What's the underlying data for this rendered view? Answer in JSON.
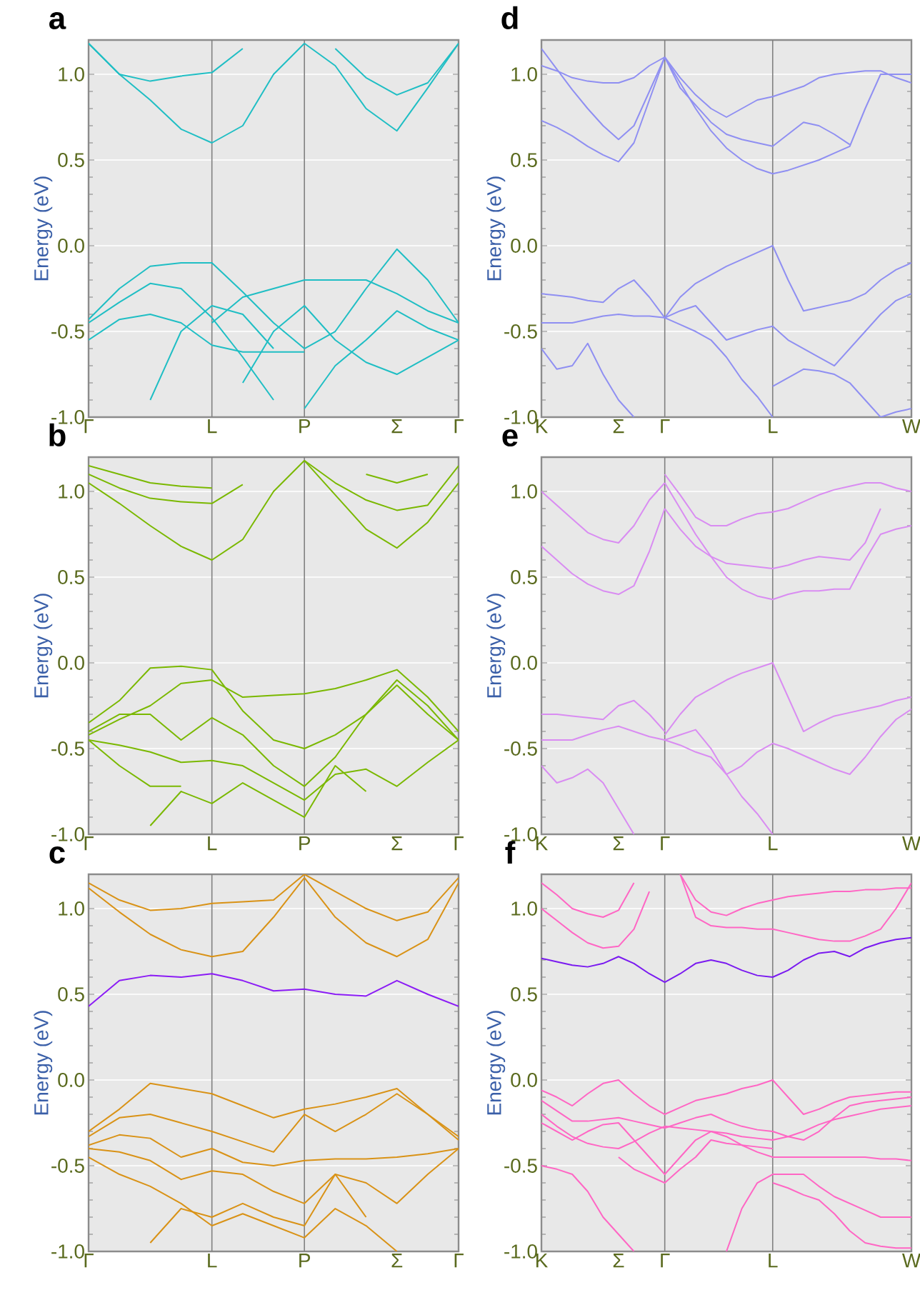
{
  "chart_data": [
    {
      "type": "line",
      "title": "a",
      "ylabel": "Energy (eV)",
      "ylim": [
        -1,
        1.2
      ],
      "grid": "y",
      "categories": [
        "Γ",
        null,
        null,
        null,
        "L",
        null,
        null,
        "P",
        null,
        null,
        "Σ",
        null,
        "Γ"
      ],
      "yticks": [
        {
          "value": -1,
          "label": "-1.0"
        },
        {
          "value": -0.5,
          "label": "-0.5"
        },
        {
          "value": 0,
          "label": "0.0"
        },
        {
          "value": 0.5,
          "label": "0.5"
        },
        {
          "value": 1,
          "label": "1.0"
        }
      ],
      "ref_lines": [
        {
          "axis": "x",
          "value": "L",
          "color": "#808080"
        },
        {
          "axis": "x",
          "value": "P",
          "color": "#808080"
        }
      ],
      "series": [
        {
          "color": "#1fbec4",
          "values": [
            1.18,
            1.0,
            0.85,
            0.68,
            0.6,
            0.7,
            1.0,
            1.18,
            null,
            null,
            null,
            null,
            null
          ]
        },
        {
          "color": "#1fbec4",
          "values": [
            null,
            null,
            null,
            null,
            null,
            null,
            null,
            1.18,
            1.05,
            0.8,
            0.67,
            0.92,
            1.18
          ]
        },
        {
          "color": "#1fbec4",
          "values": [
            1.18,
            1.0,
            0.96,
            0.99,
            1.01,
            1.15,
            null,
            null,
            null,
            null,
            null,
            null,
            null
          ]
        },
        {
          "color": "#1fbec4",
          "values": [
            null,
            null,
            null,
            null,
            null,
            null,
            null,
            null,
            1.15,
            0.98,
            0.88,
            0.95,
            1.18
          ]
        },
        {
          "color": "#1fbec4",
          "values": [
            -0.43,
            -0.25,
            -0.12,
            -0.1,
            -0.1,
            -0.27,
            -0.45,
            -0.6,
            null,
            null,
            null,
            null,
            null
          ]
        },
        {
          "color": "#1fbec4",
          "values": [
            null,
            null,
            null,
            null,
            -0.45,
            -0.3,
            -0.25,
            -0.2,
            -0.2,
            -0.2,
            -0.28,
            -0.38,
            -0.45
          ]
        },
        {
          "color": "#1fbec4",
          "values": [
            null,
            null,
            null,
            null,
            null,
            null,
            null,
            -0.6,
            -0.5,
            -0.25,
            -0.02,
            -0.2,
            -0.45
          ]
        },
        {
          "color": "#1fbec4",
          "values": [
            -0.45,
            -0.33,
            -0.22,
            -0.25,
            -0.42,
            -0.65,
            -0.9,
            null,
            null,
            null,
            null,
            null,
            null
          ]
        },
        {
          "color": "#1fbec4",
          "values": [
            -0.55,
            -0.43,
            -0.4,
            -0.45,
            -0.58,
            -0.62,
            -0.62,
            -0.62,
            null,
            null,
            null,
            null,
            null
          ]
        },
        {
          "color": "#1fbec4",
          "values": [
            null,
            null,
            -0.9,
            -0.5,
            -0.35,
            -0.4,
            -0.6,
            null,
            null,
            null,
            null,
            null,
            null
          ]
        },
        {
          "color": "#1fbec4",
          "values": [
            null,
            null,
            null,
            null,
            null,
            null,
            null,
            -0.95,
            -0.7,
            -0.55,
            -0.38,
            -0.48,
            -0.55
          ]
        },
        {
          "color": "#1fbec4",
          "values": [
            null,
            null,
            null,
            null,
            null,
            -0.8,
            -0.5,
            -0.35,
            -0.55,
            -0.68,
            -0.75,
            -0.65,
            -0.55
          ]
        }
      ]
    },
    {
      "type": "line",
      "title": "d",
      "ylabel": "Energy (eV)",
      "ylim": [
        -1,
        1.2
      ],
      "grid": "y",
      "categories": [
        "K",
        null,
        null,
        null,
        null,
        "Σ",
        null,
        null,
        "Γ",
        null,
        null,
        null,
        null,
        null,
        null,
        "L",
        null,
        null,
        null,
        null,
        null,
        null,
        null,
        null,
        "W"
      ],
      "yticks": [
        {
          "value": -1,
          "label": "-1.0"
        },
        {
          "value": -0.5,
          "label": "-0.5"
        },
        {
          "value": 0,
          "label": "0.0"
        },
        {
          "value": 0.5,
          "label": "0.5"
        },
        {
          "value": 1,
          "label": "1.0"
        }
      ],
      "ref_lines": [
        {
          "axis": "x",
          "value": "Γ",
          "color": "#808080"
        },
        {
          "axis": "x",
          "value": "L",
          "color": "#808080"
        }
      ],
      "series": [
        {
          "color": "#8f8ff2",
          "values": [
            0.73,
            0.69,
            0.64,
            0.58,
            0.53,
            0.49,
            0.6,
            0.85,
            1.1,
            null,
            null,
            null,
            null,
            null,
            null,
            null,
            null,
            null,
            null,
            null,
            null,
            null,
            null,
            null,
            null
          ]
        },
        {
          "color": "#8f8ff2",
          "values": [
            1.15,
            1.03,
            0.91,
            0.8,
            0.7,
            0.62,
            0.7,
            0.9,
            1.1,
            null,
            null,
            null,
            null,
            null,
            null,
            null,
            null,
            null,
            null,
            null,
            null,
            null,
            null,
            null,
            null
          ]
        },
        {
          "color": "#8f8ff2",
          "values": [
            1.05,
            1.02,
            0.98,
            0.96,
            0.95,
            0.95,
            0.98,
            1.05,
            1.1,
            null,
            null,
            null,
            null,
            null,
            null,
            null,
            null,
            null,
            null,
            null,
            null,
            null,
            null,
            null,
            null
          ]
        },
        {
          "color": "#8f8ff2",
          "values": [
            null,
            null,
            null,
            null,
            null,
            null,
            null,
            null,
            1.1,
            0.95,
            0.8,
            0.67,
            0.57,
            0.5,
            0.45,
            0.42,
            0.44,
            0.47,
            0.5,
            0.54,
            0.58,
            0.8,
            1.0,
            1.0,
            1.0
          ]
        },
        {
          "color": "#8f8ff2",
          "values": [
            null,
            null,
            null,
            null,
            null,
            null,
            null,
            null,
            1.1,
            0.92,
            0.82,
            0.72,
            0.65,
            0.62,
            0.6,
            0.58,
            0.65,
            0.72,
            0.7,
            0.65,
            0.59,
            null,
            null,
            null,
            null
          ]
        },
        {
          "color": "#8f8ff2",
          "values": [
            null,
            null,
            null,
            null,
            null,
            null,
            null,
            null,
            1.1,
            0.98,
            0.88,
            0.8,
            0.75,
            0.8,
            0.85,
            0.87,
            0.9,
            0.93,
            0.98,
            1.0,
            1.01,
            1.02,
            1.02,
            0.98,
            0.95
          ]
        },
        {
          "color": "#8f8ff2",
          "values": [
            null,
            null,
            null,
            null,
            null,
            null,
            null,
            null,
            -0.42,
            -0.3,
            -0.22,
            -0.17,
            -0.12,
            -0.08,
            -0.04,
            0.0,
            -0.2,
            -0.38,
            -0.36,
            -0.34,
            -0.32,
            -0.28,
            -0.2,
            -0.14,
            -0.1
          ]
        },
        {
          "color": "#8f8ff2",
          "values": [
            -0.28,
            -0.29,
            -0.3,
            -0.32,
            -0.33,
            -0.25,
            -0.2,
            -0.3,
            -0.42,
            null,
            null,
            null,
            null,
            null,
            null,
            null,
            null,
            null,
            null,
            null,
            null,
            null,
            null,
            null,
            null
          ]
        },
        {
          "color": "#8f8ff2",
          "values": [
            -0.45,
            -0.45,
            -0.45,
            -0.43,
            -0.41,
            -0.4,
            -0.41,
            -0.41,
            -0.42,
            -0.46,
            -0.5,
            -0.55,
            -0.65,
            -0.78,
            -0.88,
            -1.0,
            null,
            null,
            null,
            null,
            null,
            null,
            null,
            null,
            null
          ]
        },
        {
          "color": "#8f8ff2",
          "values": [
            null,
            null,
            null,
            null,
            null,
            null,
            null,
            null,
            -0.42,
            -0.38,
            -0.35,
            -0.45,
            -0.55,
            -0.52,
            -0.49,
            -0.47,
            -0.55,
            -0.6,
            -0.65,
            -0.7,
            -0.6,
            -0.5,
            -0.4,
            -0.32,
            -0.28
          ]
        },
        {
          "color": "#8f8ff2",
          "values": [
            -0.6,
            -0.72,
            -0.7,
            -0.57,
            -0.75,
            -0.9,
            -1.0,
            null,
            null,
            null,
            null,
            null,
            null,
            null,
            null,
            null,
            null,
            null,
            null,
            null,
            null,
            null,
            null,
            null,
            null
          ]
        },
        {
          "color": "#8f8ff2",
          "values": [
            null,
            null,
            null,
            null,
            null,
            null,
            null,
            null,
            null,
            null,
            null,
            null,
            null,
            null,
            null,
            -0.82,
            -0.77,
            -0.72,
            -0.73,
            -0.75,
            -0.8,
            -0.9,
            -1.0,
            -0.97,
            -0.95
          ]
        }
      ]
    },
    {
      "type": "line",
      "title": "b",
      "ylabel": "Energy (eV)",
      "ylim": [
        -1,
        1.2
      ],
      "grid": "y",
      "categories": [
        "Γ",
        null,
        null,
        null,
        "L",
        null,
        null,
        "P",
        null,
        null,
        "Σ",
        null,
        "Γ"
      ],
      "yticks": [
        {
          "value": -1,
          "label": "-1.0"
        },
        {
          "value": -0.5,
          "label": "-0.5"
        },
        {
          "value": 0,
          "label": "0.0"
        },
        {
          "value": 0.5,
          "label": "0.5"
        },
        {
          "value": 1,
          "label": "1.0"
        }
      ],
      "ref_lines": [
        {
          "axis": "x",
          "value": "L",
          "color": "#808080"
        },
        {
          "axis": "x",
          "value": "P",
          "color": "#808080"
        }
      ],
      "series": [
        {
          "color": "#7ab800",
          "values": [
            1.05,
            0.93,
            0.8,
            0.68,
            0.6,
            0.72,
            1.0,
            1.18,
            null,
            null,
            null,
            null,
            null
          ]
        },
        {
          "color": "#7ab800",
          "values": [
            null,
            null,
            null,
            null,
            null,
            null,
            null,
            1.18,
            0.98,
            0.78,
            0.67,
            0.82,
            1.05
          ]
        },
        {
          "color": "#7ab800",
          "values": [
            1.1,
            1.02,
            0.96,
            0.94,
            0.93,
            1.04,
            null,
            null,
            null,
            null,
            null,
            null,
            null
          ]
        },
        {
          "color": "#7ab800",
          "values": [
            null,
            null,
            null,
            null,
            null,
            null,
            null,
            1.18,
            1.05,
            0.95,
            0.89,
            0.92,
            1.15
          ]
        },
        {
          "color": "#7ab800",
          "values": [
            1.15,
            1.1,
            1.05,
            1.03,
            1.02,
            null,
            null,
            null,
            null,
            null,
            null,
            null,
            null
          ]
        },
        {
          "color": "#7ab800",
          "values": [
            null,
            null,
            null,
            null,
            null,
            null,
            null,
            null,
            null,
            1.1,
            1.05,
            1.1,
            null
          ]
        },
        {
          "color": "#7ab800",
          "values": [
            -0.35,
            -0.22,
            -0.03,
            -0.02,
            -0.04,
            -0.28,
            -0.45,
            -0.5,
            -0.42,
            -0.3,
            -0.1,
            -0.25,
            -0.45
          ]
        },
        {
          "color": "#7ab800",
          "values": [
            -0.42,
            -0.33,
            -0.25,
            -0.12,
            -0.1,
            -0.2,
            -0.19,
            -0.18,
            -0.15,
            -0.1,
            -0.04,
            -0.2,
            -0.4
          ]
        },
        {
          "color": "#7ab800",
          "values": [
            -0.4,
            -0.3,
            -0.3,
            -0.45,
            -0.32,
            -0.42,
            -0.6,
            -0.72,
            -0.55,
            -0.3,
            -0.13,
            -0.3,
            -0.45
          ]
        },
        {
          "color": "#7ab800",
          "values": [
            -0.45,
            -0.48,
            -0.52,
            -0.58,
            -0.57,
            -0.6,
            -0.7,
            -0.8,
            -0.65,
            -0.62,
            -0.72,
            -0.58,
            -0.45
          ]
        },
        {
          "color": "#7ab800",
          "values": [
            null,
            null,
            -0.95,
            -0.75,
            -0.82,
            -0.7,
            -0.8,
            -0.9,
            -0.6,
            -0.75,
            null,
            null,
            null
          ]
        },
        {
          "color": "#7ab800",
          "values": [
            -0.45,
            -0.6,
            -0.72,
            -0.72,
            null,
            null,
            null,
            null,
            null,
            null,
            null,
            null,
            null
          ]
        }
      ]
    },
    {
      "type": "line",
      "title": "e",
      "ylabel": "Energy (eV)",
      "ylim": [
        -1,
        1.2
      ],
      "grid": "y",
      "categories": [
        "K",
        null,
        null,
        null,
        null,
        "Σ",
        null,
        null,
        "Γ",
        null,
        null,
        null,
        null,
        null,
        null,
        "L",
        null,
        null,
        null,
        null,
        null,
        null,
        null,
        null,
        "W"
      ],
      "yticks": [
        {
          "value": -1,
          "label": "-1.0"
        },
        {
          "value": -0.5,
          "label": "-0.5"
        },
        {
          "value": 0,
          "label": "0.0"
        },
        {
          "value": 0.5,
          "label": "0.5"
        },
        {
          "value": 1,
          "label": "1.0"
        }
      ],
      "ref_lines": [
        {
          "axis": "x",
          "value": "Γ",
          "color": "#808080"
        },
        {
          "axis": "x",
          "value": "L",
          "color": "#808080"
        }
      ],
      "series": [
        {
          "color": "#d98cf2",
          "values": [
            0.68,
            0.6,
            0.52,
            0.46,
            0.42,
            0.4,
            0.45,
            0.65,
            0.9,
            null,
            null,
            null,
            null,
            null,
            null,
            null,
            null,
            null,
            null,
            null,
            null,
            null,
            null,
            null,
            null
          ]
        },
        {
          "color": "#d98cf2",
          "values": [
            1.0,
            0.92,
            0.84,
            0.76,
            0.72,
            0.7,
            0.8,
            0.95,
            1.05,
            null,
            null,
            null,
            null,
            null,
            null,
            null,
            null,
            null,
            null,
            null,
            null,
            null,
            null,
            null,
            null
          ]
        },
        {
          "color": "#d98cf2",
          "values": [
            null,
            null,
            null,
            null,
            null,
            null,
            null,
            null,
            1.05,
            0.9,
            0.75,
            0.62,
            0.5,
            0.43,
            0.39,
            0.37,
            0.4,
            0.42,
            0.42,
            0.43,
            0.43,
            0.6,
            0.75,
            0.78,
            0.8
          ]
        },
        {
          "color": "#d98cf2",
          "values": [
            null,
            null,
            null,
            null,
            null,
            null,
            null,
            null,
            0.9,
            0.78,
            0.68,
            0.62,
            0.58,
            0.57,
            0.56,
            0.55,
            0.57,
            0.6,
            0.62,
            0.61,
            0.6,
            0.7,
            0.9,
            null,
            null
          ]
        },
        {
          "color": "#d98cf2",
          "values": [
            null,
            null,
            null,
            null,
            null,
            null,
            null,
            null,
            1.1,
            0.98,
            0.85,
            0.8,
            0.8,
            0.84,
            0.87,
            0.88,
            0.9,
            0.94,
            0.98,
            1.01,
            1.03,
            1.05,
            1.05,
            1.02,
            1.0
          ]
        },
        {
          "color": "#d98cf2",
          "values": [
            null,
            null,
            null,
            null,
            null,
            null,
            null,
            null,
            -0.42,
            -0.3,
            -0.2,
            -0.15,
            -0.1,
            -0.06,
            -0.03,
            0.0,
            -0.2,
            -0.4,
            -0.35,
            -0.31,
            -0.29,
            -0.27,
            -0.25,
            -0.22,
            -0.2
          ]
        },
        {
          "color": "#d98cf2",
          "values": [
            -0.3,
            -0.3,
            -0.31,
            -0.32,
            -0.33,
            -0.25,
            -0.22,
            -0.3,
            -0.4,
            null,
            null,
            null,
            null,
            null,
            null,
            null,
            null,
            null,
            null,
            null,
            null,
            null,
            null,
            null,
            null
          ]
        },
        {
          "color": "#d98cf2",
          "values": [
            -0.45,
            -0.45,
            -0.45,
            -0.42,
            -0.39,
            -0.37,
            -0.4,
            -0.43,
            -0.45,
            -0.48,
            -0.52,
            -0.55,
            -0.65,
            -0.78,
            -0.88,
            -1.0,
            null,
            null,
            null,
            null,
            null,
            null,
            null,
            null,
            null
          ]
        },
        {
          "color": "#d98cf2",
          "values": [
            null,
            null,
            null,
            null,
            null,
            null,
            null,
            null,
            -0.45,
            -0.42,
            -0.39,
            -0.5,
            -0.65,
            -0.6,
            -0.52,
            -0.47,
            -0.5,
            -0.54,
            -0.58,
            -0.62,
            -0.65,
            -0.55,
            -0.43,
            -0.33,
            -0.27
          ]
        },
        {
          "color": "#d98cf2",
          "values": [
            -0.6,
            -0.7,
            -0.67,
            -0.62,
            -0.7,
            -0.85,
            -1.0,
            null,
            null,
            null,
            null,
            null,
            null,
            null,
            null,
            null,
            null,
            null,
            null,
            null,
            null,
            null,
            null,
            null,
            null
          ]
        }
      ]
    },
    {
      "type": "line",
      "title": "c",
      "ylabel": "Energy (eV)",
      "ylim": [
        -1,
        1.2
      ],
      "grid": "y",
      "categories": [
        "Γ",
        null,
        null,
        null,
        "L",
        null,
        null,
        "P",
        null,
        null,
        "Σ",
        null,
        "Γ"
      ],
      "yticks": [
        {
          "value": -1,
          "label": "-1.0"
        },
        {
          "value": -0.5,
          "label": "-0.5"
        },
        {
          "value": 0,
          "label": "0.0"
        },
        {
          "value": 0.5,
          "label": "0.5"
        },
        {
          "value": 1,
          "label": "1.0"
        }
      ],
      "ref_lines": [
        {
          "axis": "x",
          "value": "L",
          "color": "#808080"
        },
        {
          "axis": "x",
          "value": "P",
          "color": "#808080"
        }
      ],
      "series": [
        {
          "color": "#d99216",
          "values": [
            1.12,
            0.98,
            0.85,
            0.76,
            0.72,
            0.75,
            0.95,
            1.18,
            null,
            null,
            null,
            null,
            null
          ]
        },
        {
          "color": "#d99216",
          "values": [
            null,
            null,
            null,
            null,
            null,
            null,
            null,
            1.18,
            0.95,
            0.8,
            0.72,
            0.82,
            1.15
          ]
        },
        {
          "color": "#d99216",
          "values": [
            1.15,
            1.05,
            0.99,
            1.0,
            1.03,
            1.04,
            1.05,
            1.2,
            null,
            null,
            null,
            null,
            null
          ]
        },
        {
          "color": "#d99216",
          "values": [
            null,
            null,
            null,
            null,
            null,
            null,
            null,
            1.2,
            1.1,
            1.0,
            0.93,
            0.98,
            1.18
          ]
        },
        {
          "color": "#d99216",
          "values": [
            -0.3,
            -0.17,
            -0.02,
            -0.05,
            -0.08,
            -0.15,
            -0.22,
            -0.17,
            -0.14,
            -0.1,
            -0.05,
            -0.2,
            -0.33
          ]
        },
        {
          "color": "#d99216",
          "values": [
            -0.33,
            -0.22,
            -0.2,
            -0.25,
            -0.3,
            -0.36,
            -0.42,
            -0.2,
            -0.3,
            -0.2,
            -0.08,
            -0.2,
            -0.35
          ]
        },
        {
          "color": "#d99216",
          "values": [
            -0.38,
            -0.32,
            -0.34,
            -0.45,
            -0.4,
            -0.48,
            -0.5,
            -0.47,
            -0.46,
            -0.46,
            -0.45,
            -0.43,
            -0.4
          ]
        },
        {
          "color": "#d99216",
          "values": [
            -0.4,
            -0.42,
            -0.47,
            -0.58,
            -0.53,
            -0.55,
            -0.65,
            -0.72,
            -0.55,
            -0.6,
            -0.72,
            -0.55,
            -0.4
          ]
        },
        {
          "color": "#d99216",
          "values": [
            null,
            null,
            -0.95,
            -0.75,
            -0.8,
            -0.72,
            -0.8,
            -0.85,
            -0.55,
            -0.8,
            null,
            null,
            null
          ]
        },
        {
          "color": "#d99216",
          "values": [
            -0.45,
            -0.55,
            -0.62,
            -0.72,
            -0.85,
            -0.78,
            -0.85,
            -0.92,
            -0.75,
            -0.85,
            -1.0,
            null,
            null
          ]
        },
        {
          "color": "#8b1cf5",
          "values": [
            0.43,
            0.58,
            0.61,
            0.6,
            0.62,
            0.58,
            0.52,
            0.53,
            0.5,
            0.49,
            0.58,
            0.5,
            0.43
          ]
        }
      ]
    },
    {
      "type": "line",
      "title": "f",
      "ylabel": "Energy (eV)",
      "ylim": [
        -1,
        1.2
      ],
      "grid": "y",
      "categories": [
        "K",
        null,
        null,
        null,
        null,
        "Σ",
        null,
        null,
        "Γ",
        null,
        null,
        null,
        null,
        null,
        null,
        "L",
        null,
        null,
        null,
        null,
        null,
        null,
        null,
        null,
        "W"
      ],
      "yticks": [
        {
          "value": -1,
          "label": "-1.0"
        },
        {
          "value": -0.5,
          "label": "-0.5"
        },
        {
          "value": 0,
          "label": "0.0"
        },
        {
          "value": 0.5,
          "label": "0.5"
        },
        {
          "value": 1,
          "label": "1.0"
        }
      ],
      "ref_lines": [
        {
          "axis": "x",
          "value": "Γ",
          "color": "#808080"
        },
        {
          "axis": "x",
          "value": "L",
          "color": "#808080"
        }
      ],
      "series": [
        {
          "color": "#ff66c4",
          "values": [
            1.0,
            0.93,
            0.86,
            0.8,
            0.77,
            0.78,
            0.88,
            1.1,
            null,
            null,
            null,
            null,
            null,
            null,
            null,
            null,
            null,
            null,
            null,
            null,
            null,
            null,
            null,
            null,
            null
          ]
        },
        {
          "color": "#ff66c4",
          "values": [
            1.15,
            1.08,
            1.0,
            0.97,
            0.95,
            0.99,
            1.15,
            null,
            null,
            null,
            null,
            null,
            null,
            null,
            null,
            null,
            null,
            null,
            null,
            null,
            null,
            null,
            null,
            null,
            null
          ]
        },
        {
          "color": "#ff66c4",
          "values": [
            null,
            null,
            null,
            null,
            null,
            null,
            null,
            null,
            null,
            1.2,
            0.95,
            0.9,
            0.89,
            0.89,
            0.88,
            0.88,
            0.86,
            0.84,
            0.82,
            0.81,
            0.81,
            0.84,
            0.88,
            1.0,
            1.15
          ]
        },
        {
          "color": "#ff66c4",
          "values": [
            null,
            null,
            null,
            null,
            null,
            null,
            null,
            null,
            null,
            1.2,
            1.05,
            0.98,
            0.96,
            1.0,
            1.03,
            1.05,
            1.07,
            1.08,
            1.09,
            1.1,
            1.1,
            1.11,
            1.11,
            1.12,
            1.12
          ]
        },
        {
          "color": "#ff66c4",
          "values": [
            -0.06,
            -0.1,
            -0.15,
            -0.08,
            -0.02,
            0.0,
            -0.08,
            -0.15,
            -0.2,
            -0.16,
            -0.12,
            -0.1,
            -0.08,
            -0.05,
            -0.03,
            0.0,
            -0.1,
            -0.2,
            -0.17,
            -0.13,
            -0.1,
            -0.09,
            -0.08,
            -0.07,
            -0.07
          ]
        },
        {
          "color": "#ff66c4",
          "values": [
            -0.12,
            -0.18,
            -0.24,
            -0.24,
            -0.23,
            -0.22,
            -0.24,
            -0.26,
            -0.28,
            -0.25,
            -0.22,
            -0.2,
            -0.24,
            -0.27,
            -0.29,
            -0.3,
            -0.33,
            -0.35,
            -0.3,
            -0.22,
            -0.15,
            -0.13,
            -0.12,
            -0.11,
            -0.1
          ]
        },
        {
          "color": "#ff66c4",
          "values": [
            -0.2,
            -0.27,
            -0.33,
            -0.37,
            -0.39,
            -0.4,
            -0.36,
            -0.31,
            -0.27,
            -0.28,
            -0.29,
            -0.3,
            -0.31,
            -0.33,
            -0.34,
            -0.35,
            -0.33,
            -0.3,
            -0.26,
            -0.23,
            -0.21,
            -0.19,
            -0.17,
            -0.16,
            -0.15
          ]
        },
        {
          "color": "#ff66c4",
          "values": [
            -0.25,
            -0.3,
            -0.35,
            -0.3,
            -0.26,
            -0.25,
            -0.35,
            -0.45,
            -0.55,
            -0.45,
            -0.35,
            -0.3,
            -0.33,
            -0.38,
            -0.42,
            -0.45,
            -0.45,
            -0.45,
            -0.45,
            -0.45,
            -0.45,
            -0.45,
            -0.46,
            -0.46,
            -0.47
          ]
        },
        {
          "color": "#ff66c4",
          "values": [
            null,
            null,
            null,
            null,
            null,
            -0.45,
            -0.52,
            -0.56,
            -0.6,
            -0.52,
            -0.45,
            -0.35,
            -0.37,
            -0.38,
            -0.39,
            -0.4,
            null,
            null,
            null,
            null,
            null,
            null,
            null,
            null,
            null
          ]
        },
        {
          "color": "#ff66c4",
          "values": [
            -0.5,
            -0.52,
            -0.55,
            -0.65,
            -0.8,
            -0.9,
            -1.0,
            null,
            null,
            null,
            null,
            null,
            null,
            null,
            null,
            null,
            null,
            null,
            null,
            null,
            null,
            null,
            null,
            null,
            null
          ]
        },
        {
          "color": "#ff66c4",
          "values": [
            null,
            null,
            null,
            null,
            null,
            null,
            null,
            null,
            null,
            null,
            null,
            null,
            -1.0,
            -0.75,
            -0.6,
            -0.55,
            -0.55,
            -0.55,
            -0.62,
            -0.68,
            -0.72,
            -0.76,
            -0.8,
            -0.8,
            -0.8
          ]
        },
        {
          "color": "#ff66c4",
          "values": [
            null,
            null,
            null,
            null,
            null,
            null,
            null,
            null,
            null,
            null,
            null,
            null,
            null,
            null,
            null,
            -0.6,
            -0.63,
            -0.67,
            -0.7,
            -0.78,
            -0.88,
            -0.95,
            -0.97,
            -0.98,
            -0.98
          ]
        },
        {
          "color": "#7a1af0",
          "values": [
            0.71,
            0.69,
            0.67,
            0.66,
            0.68,
            0.72,
            0.68,
            0.62,
            0.57,
            0.62,
            0.68,
            0.7,
            0.68,
            0.64,
            0.61,
            0.6,
            0.64,
            0.7,
            0.74,
            0.75,
            0.72,
            0.77,
            0.8,
            0.82,
            0.83
          ]
        }
      ]
    }
  ]
}
